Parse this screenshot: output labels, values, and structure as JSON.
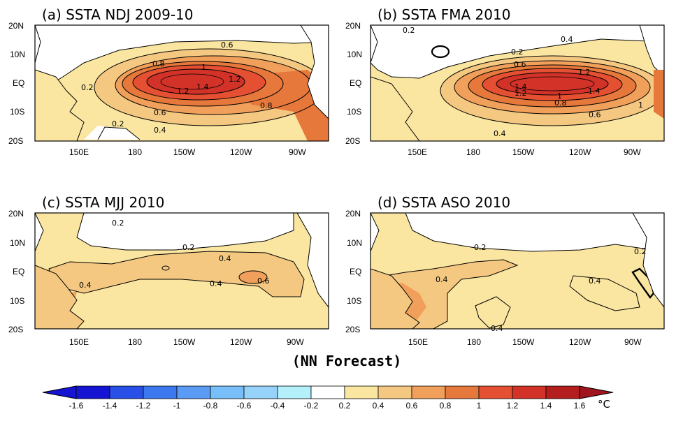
{
  "footer": "(NN Forecast)",
  "unit": "°C",
  "axes": {
    "xticks": [
      "150E",
      "180",
      "150W",
      "120W",
      "90W"
    ],
    "yticks": [
      "20N",
      "10N",
      "EQ",
      "10S",
      "20S"
    ]
  },
  "panels": [
    {
      "title": "(a) SSTA NDJ 2009-10",
      "contour_labels": [
        "0.6",
        "0.8",
        "1",
        "1.2",
        "1.4",
        "1.2",
        "0.2",
        "0.8",
        "0.6",
        "0.2",
        "0.4"
      ]
    },
    {
      "title": "(b) SSTA FMA 2010",
      "contour_labels": [
        "0.2",
        "0.4",
        "0.2",
        "0.6",
        "1.2",
        "1.4",
        "1.2",
        "1",
        "0.8",
        "1.4",
        "1",
        "0.6",
        "0.4"
      ]
    },
    {
      "title": "(c) SSTA MJJ 2010",
      "contour_labels": [
        "0.2",
        "0.2",
        "0.4",
        "0.4",
        "0.4",
        "0.6"
      ]
    },
    {
      "title": "(d) SSTA ASO 2010",
      "contour_labels": [
        "0.2",
        "0.2",
        "0.4",
        "0.4",
        "0.4"
      ]
    }
  ],
  "colorbar": {
    "labels": [
      "-1.6",
      "-1.4",
      "-1.2",
      "-1",
      "-0.8",
      "-0.6",
      "-0.4",
      "-0.2",
      "0.2",
      "0.4",
      "0.6",
      "0.8",
      "1",
      "1.2",
      "1.4",
      "1.6"
    ],
    "colors": [
      "#1414d2",
      "#2850e6",
      "#3c78f0",
      "#5a9bf5",
      "#78bef8",
      "#96d2fa",
      "#b4f0fa",
      "#ffffff",
      "#fae6a0",
      "#f5c882",
      "#f0a05a",
      "#e6783c",
      "#e65032",
      "#d23228",
      "#b41e1e"
    ]
  }
}
